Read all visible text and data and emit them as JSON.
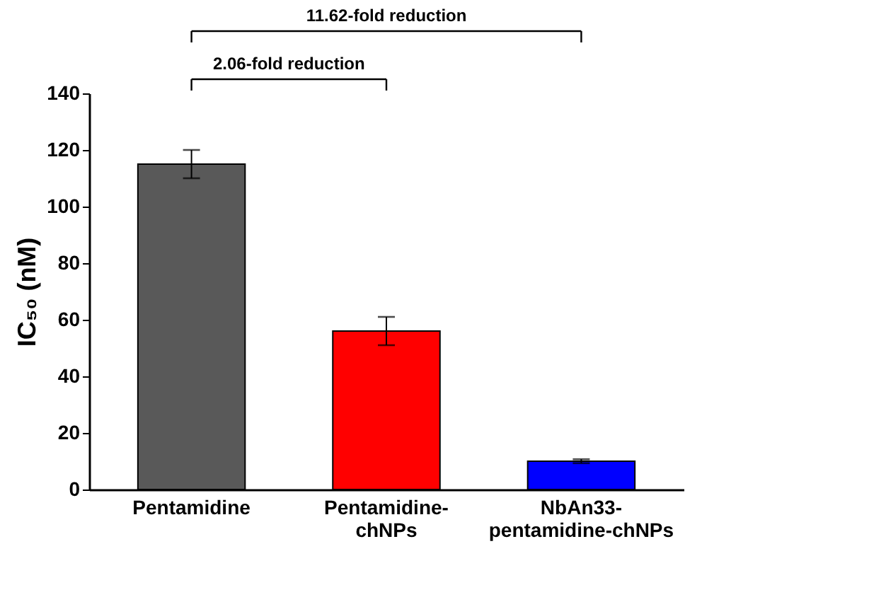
{
  "chart_data": {
    "type": "bar",
    "ylabel": "IC₅₀ (nM)",
    "categories": [
      "Pentamidine",
      "Pentamidine-chNPs",
      "NbAn33-pentamidine-chNPs"
    ],
    "values": [
      115,
      56,
      10
    ],
    "colors": [
      "#595959",
      "#ff0000",
      "#0000ff"
    ],
    "errors": [
      5,
      5,
      0.7
    ],
    "ylim": [
      0,
      140
    ],
    "yticks": [
      0,
      20,
      40,
      60,
      80,
      100,
      120,
      140
    ],
    "grid": false,
    "annotations": [
      "2.06-fold reduction",
      "11.62-fold reduction"
    ]
  }
}
